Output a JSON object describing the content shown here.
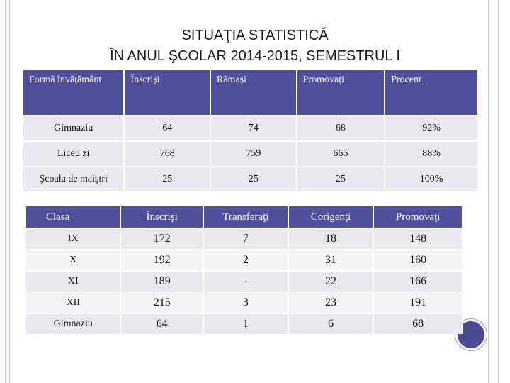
{
  "title": {
    "line1": "SITUAŢIA STATISTICĂ",
    "line2": "ÎN ANUL ŞCOLAR 2014-2015,  SEMESTRUL I"
  },
  "table1": {
    "headers": [
      "Formă învăţământ",
      "Înscrişi",
      "Rămaşi",
      "Promovaţi",
      "Procent"
    ],
    "rows": [
      [
        "Gimnaziu",
        "64",
        "74",
        "68",
        "92%"
      ],
      [
        "Liceu zi",
        "768",
        "759",
        "665",
        "88%"
      ],
      [
        "Şcoala de maiştri",
        "25",
        "25",
        "25",
        "100%"
      ]
    ]
  },
  "table2": {
    "headers": [
      "Clasa",
      "Înscrişi",
      "Transferaţi",
      "Corigenţi",
      "Promovaţi"
    ],
    "rows": [
      [
        "IX",
        "172",
        "7",
        "18",
        "148"
      ],
      [
        "X",
        "192",
        "2",
        "31",
        "160"
      ],
      [
        "XI",
        "189",
        "-",
        "22",
        "166"
      ],
      [
        "XII",
        "215",
        "3",
        "23",
        "191"
      ],
      [
        "Gimnaziu",
        "64",
        "1",
        "6",
        "68"
      ]
    ]
  }
}
